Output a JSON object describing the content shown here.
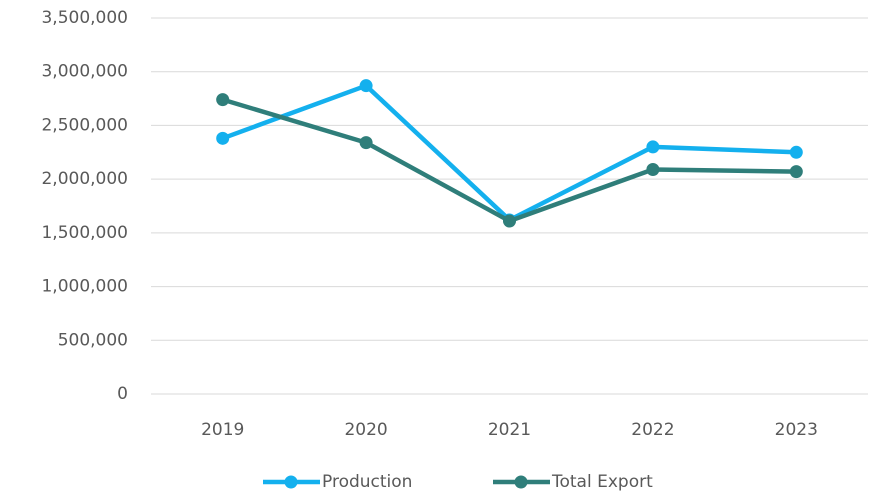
{
  "chart_data": {
    "type": "line",
    "categories": [
      "2019",
      "2020",
      "2021",
      "2022",
      "2023"
    ],
    "series": [
      {
        "name": "Production",
        "color": "#14b0ee",
        "values": [
          2380000,
          2870000,
          1620000,
          2300000,
          2250000
        ]
      },
      {
        "name": "Total Export",
        "color": "#2f7e7a",
        "values": [
          2740000,
          2340000,
          1610000,
          2090000,
          2070000
        ]
      }
    ],
    "ylim": [
      0,
      3500000
    ],
    "yticks": [
      {
        "value": 0,
        "label": "0"
      },
      {
        "value": 500000,
        "label": "500,000"
      },
      {
        "value": 1000000,
        "label": "1,000,000"
      },
      {
        "value": 1500000,
        "label": "1,500,000"
      },
      {
        "value": 2000000,
        "label": "2,000,000"
      },
      {
        "value": 2500000,
        "label": "2,500,000"
      },
      {
        "value": 3000000,
        "label": "3,000,000"
      },
      {
        "value": 3500000,
        "label": "3,500,000"
      }
    ],
    "grid": true,
    "legend": "bottom"
  }
}
